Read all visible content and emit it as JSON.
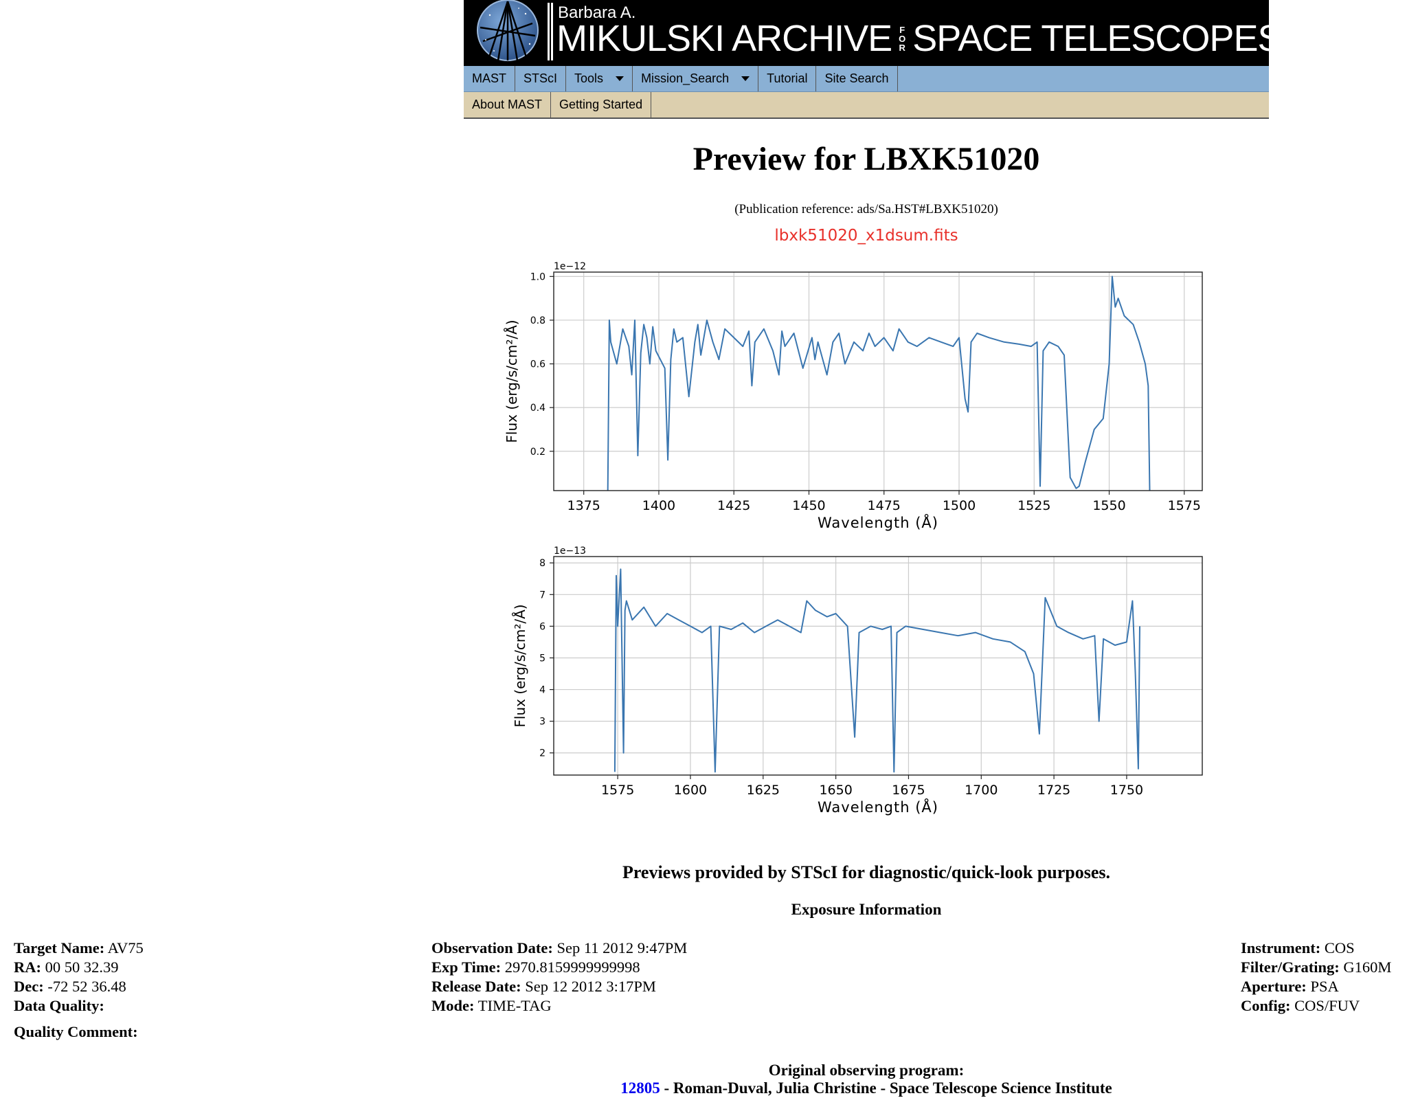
{
  "header": {
    "banner_small": "Barbara A.",
    "banner_left": "MIKULSKI ARCHIVE",
    "banner_for": [
      "F",
      "O",
      "R"
    ],
    "banner_right": "SPACE TELESCOPES",
    "logo_icon": "telescope-logo-icon"
  },
  "nav": {
    "primary": [
      {
        "label": "MAST",
        "dropdown": false
      },
      {
        "label": "STScI",
        "dropdown": false
      },
      {
        "label": "Tools",
        "dropdown": true
      },
      {
        "label": "Mission_Search",
        "dropdown": true
      },
      {
        "label": "Tutorial",
        "dropdown": false
      },
      {
        "label": "Site Search",
        "dropdown": false
      }
    ],
    "secondary": [
      {
        "label": "About MAST"
      },
      {
        "label": "Getting Started"
      }
    ]
  },
  "page": {
    "title": "Preview for LBXK51020",
    "pub_reference": "(Publication reference: ads/Sa.HST#LBXK51020)",
    "fits_file": "lbxk51020_x1dsum.fits",
    "previews_note": "Previews provided by STScI for diagnostic/quick-look purposes.",
    "exposure_heading": "Exposure Information"
  },
  "chart_data": [
    {
      "type": "line",
      "xlabel": "Wavelength (Å)",
      "ylabel": "Flux (erg/s/cm²/Å)",
      "y_multiplier": "1e−12",
      "xlim": [
        1365,
        1581
      ],
      "ylim": [
        0.02,
        1.02
      ],
      "xticks": [
        "1375",
        "1400",
        "1425",
        "1450",
        "1475",
        "1500",
        "1525",
        "1550",
        "1575"
      ],
      "yticks": [
        "0.2",
        "0.4",
        "0.6",
        "0.8",
        "1.0"
      ],
      "grid": true,
      "color": "#3a76b0",
      "x": [
        1383,
        1383.5,
        1384,
        1386,
        1388,
        1390,
        1391,
        1392,
        1393,
        1394,
        1395,
        1396,
        1397,
        1398,
        1399,
        1402,
        1403,
        1404,
        1405,
        1406,
        1408,
        1410,
        1412,
        1413,
        1414,
        1416,
        1418,
        1420,
        1422,
        1425,
        1428,
        1430,
        1431,
        1432,
        1435,
        1438,
        1440,
        1441,
        1442,
        1445,
        1448,
        1451,
        1452,
        1453,
        1456,
        1458,
        1460,
        1462,
        1465,
        1468,
        1470,
        1472,
        1475,
        1478,
        1480,
        1483,
        1486,
        1490,
        1494,
        1498,
        1500,
        1502,
        1503,
        1504,
        1506,
        1510,
        1515,
        1520,
        1524,
        1526,
        1527,
        1528,
        1530,
        1533,
        1535,
        1537,
        1539,
        1540,
        1542,
        1545,
        1548,
        1550,
        1551,
        1552,
        1553,
        1555,
        1558,
        1560,
        1562,
        1563,
        1563.5
      ],
      "y": [
        0.02,
        0.8,
        0.7,
        0.6,
        0.76,
        0.68,
        0.55,
        0.8,
        0.18,
        0.65,
        0.78,
        0.72,
        0.6,
        0.77,
        0.66,
        0.58,
        0.16,
        0.62,
        0.76,
        0.7,
        0.72,
        0.45,
        0.7,
        0.78,
        0.64,
        0.8,
        0.7,
        0.62,
        0.76,
        0.72,
        0.68,
        0.75,
        0.5,
        0.7,
        0.76,
        0.66,
        0.55,
        0.75,
        0.68,
        0.74,
        0.58,
        0.72,
        0.62,
        0.7,
        0.55,
        0.7,
        0.74,
        0.6,
        0.7,
        0.66,
        0.74,
        0.68,
        0.72,
        0.66,
        0.76,
        0.7,
        0.68,
        0.72,
        0.7,
        0.68,
        0.72,
        0.44,
        0.38,
        0.7,
        0.74,
        0.72,
        0.7,
        0.69,
        0.68,
        0.7,
        0.04,
        0.66,
        0.7,
        0.68,
        0.64,
        0.08,
        0.03,
        0.04,
        0.15,
        0.3,
        0.35,
        0.6,
        1.0,
        0.86,
        0.9,
        0.82,
        0.78,
        0.7,
        0.6,
        0.5,
        0.02
      ]
    },
    {
      "type": "line",
      "xlabel": "Wavelength (Å)",
      "ylabel": "Flux (erg/s/cm²/Å)",
      "y_multiplier": "1e−13",
      "xlim": [
        1553,
        1776
      ],
      "ylim": [
        1.3,
        8.2
      ],
      "xticks": [
        "1575",
        "1600",
        "1625",
        "1650",
        "1675",
        "1700",
        "1725",
        "1750"
      ],
      "yticks": [
        "2",
        "3",
        "4",
        "5",
        "6",
        "7",
        "8"
      ],
      "grid": true,
      "color": "#3a76b0",
      "x": [
        1574,
        1574.5,
        1575,
        1576,
        1577,
        1577.5,
        1578,
        1580,
        1584,
        1588,
        1592,
        1596,
        1600,
        1604,
        1607,
        1608.5,
        1610,
        1614,
        1618,
        1622,
        1626,
        1630,
        1634,
        1638,
        1640,
        1643,
        1647,
        1650,
        1654,
        1656.5,
        1658,
        1662,
        1666,
        1669,
        1670,
        1671,
        1674,
        1680,
        1686,
        1692,
        1698,
        1704,
        1710,
        1715,
        1718,
        1720,
        1722,
        1726,
        1730,
        1735,
        1739,
        1740.5,
        1742,
        1746,
        1750,
        1752,
        1753,
        1754,
        1754.5
      ],
      "y": [
        1.4,
        7.6,
        6.0,
        7.8,
        2.0,
        6.5,
        6.8,
        6.2,
        6.6,
        6.0,
        6.4,
        6.2,
        6.0,
        5.8,
        6.0,
        1.4,
        6.0,
        5.9,
        6.1,
        5.8,
        6.0,
        6.2,
        6.0,
        5.8,
        6.8,
        6.5,
        6.3,
        6.4,
        6.0,
        2.5,
        5.8,
        6.0,
        5.9,
        6.0,
        1.4,
        5.8,
        6.0,
        5.9,
        5.8,
        5.7,
        5.8,
        5.6,
        5.5,
        5.2,
        4.5,
        2.6,
        6.9,
        6.0,
        5.8,
        5.6,
        5.7,
        3.0,
        5.6,
        5.4,
        5.5,
        6.8,
        4.5,
        1.5,
        6.0
      ]
    }
  ],
  "exposure": {
    "left": [
      {
        "label": "Target Name:",
        "value": "AV75"
      },
      {
        "label": "RA:",
        "value": "00 50 32.39"
      },
      {
        "label": "Dec:",
        "value": "-72 52 36.48"
      },
      {
        "label": "Data Quality:",
        "value": ""
      }
    ],
    "middle": [
      {
        "label": "Observation Date:",
        "value": "Sep 11 2012 9:47PM"
      },
      {
        "label": "Exp Time:",
        "value": "2970.8159999999998"
      },
      {
        "label": "Release Date:",
        "value": "Sep 12 2012 3:17PM"
      },
      {
        "label": "Mode:",
        "value": "TIME-TAG"
      }
    ],
    "right": [
      {
        "label": "Instrument:",
        "value": "COS"
      },
      {
        "label": "Filter/Grating:",
        "value": "G160M"
      },
      {
        "label": "Aperture:",
        "value": "PSA"
      },
      {
        "label": "Config:",
        "value": "COS/FUV"
      }
    ],
    "quality_comment_label": "Quality Comment:"
  },
  "program": {
    "heading": "Original observing program:",
    "id": "12805",
    "description": " - Roman-Duval, Julia Christine - Space Telescope Science Institute"
  }
}
